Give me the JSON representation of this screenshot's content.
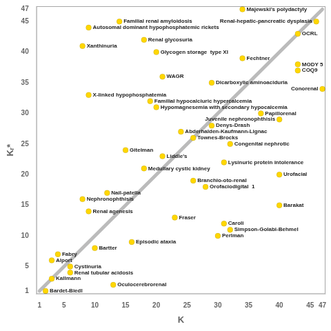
{
  "chart_data": {
    "type": "scatter",
    "xlabel": "K",
    "ylabel": "Kᵣ*",
    "color": "#FFD700",
    "points": [
      {
        "name": "Majewski's polydactyly",
        "x": 34,
        "y": 47
      },
      {
        "name": "Renal-hepatic-pancreatic dysplasia",
        "x": 46,
        "y": 45
      },
      {
        "name": "Familial renal amyloidosis",
        "x": 14,
        "y": 45
      },
      {
        "name": "Autosomal dominant hypophosphatemic rickets",
        "x": 9,
        "y": 44
      },
      {
        "name": "OCRL",
        "x": 43,
        "y": 43
      },
      {
        "name": "Renal glycosuria",
        "x": 18,
        "y": 42
      },
      {
        "name": "Xanthinuria",
        "x": 8,
        "y": 41
      },
      {
        "name": "Glycogen storage  type XI",
        "x": 20,
        "y": 40
      },
      {
        "name": "Fechtner",
        "x": 34,
        "y": 39
      },
      {
        "name": "MODY 5",
        "x": 43,
        "y": 38
      },
      {
        "name": "COQ9",
        "x": 43,
        "y": 37
      },
      {
        "name": "WAGR",
        "x": 21,
        "y": 36
      },
      {
        "name": "Dicarboxylic aminoaciduria",
        "x": 29,
        "y": 35
      },
      {
        "name": "Conorenal",
        "x": 47,
        "y": 34
      },
      {
        "name": "X-linked hypophosphatemia",
        "x": 9,
        "y": 33
      },
      {
        "name": "Familial hypocalciuric hypercalcemia",
        "x": 19,
        "y": 32
      },
      {
        "name": "Hypomagnesemia with secondary hypocalcemia",
        "x": 20,
        "y": 31
      },
      {
        "name": "Papillorenal",
        "x": 37,
        "y": 30
      },
      {
        "name": "Juvenile nephronophthisis",
        "x": 40,
        "y": 29
      },
      {
        "name": "Denys-Drash",
        "x": 29,
        "y": 28
      },
      {
        "name": "Abderhalden-Kaufmann-Lignac",
        "x": 24,
        "y": 27
      },
      {
        "name": "Townes-Brocks",
        "x": 26,
        "y": 26
      },
      {
        "name": "Congenital nephrotic",
        "x": 32,
        "y": 25
      },
      {
        "name": "Gitelman",
        "x": 15,
        "y": 24
      },
      {
        "name": "Liddle's",
        "x": 21,
        "y": 23
      },
      {
        "name": "Lysinuric protein intolerance",
        "x": 31,
        "y": 22
      },
      {
        "name": "Medullary cystic kidney",
        "x": 18,
        "y": 21
      },
      {
        "name": "Urofacial",
        "x": 40,
        "y": 20
      },
      {
        "name": "Branchio-oto-renal",
        "x": 26,
        "y": 19
      },
      {
        "name": "Orofaciodigital  1",
        "x": 28,
        "y": 18
      },
      {
        "name": "Nail-patella",
        "x": 12,
        "y": 17
      },
      {
        "name": "Nephronophthisis",
        "x": 8,
        "y": 16
      },
      {
        "name": "Barakat",
        "x": 40,
        "y": 15
      },
      {
        "name": "Renal agenesis",
        "x": 9,
        "y": 14
      },
      {
        "name": "Fraser",
        "x": 23,
        "y": 13
      },
      {
        "name": "Caroli",
        "x": 31,
        "y": 12
      },
      {
        "name": "Simpson-Golabi-Behmel",
        "x": 32,
        "y": 11
      },
      {
        "name": "Perlman",
        "x": 30,
        "y": 10
      },
      {
        "name": "Episodic ataxia",
        "x": 16,
        "y": 9
      },
      {
        "name": "Bartter",
        "x": 10,
        "y": 8
      },
      {
        "name": "Fabry",
        "x": 4,
        "y": 7
      },
      {
        "name": "Alport",
        "x": 3,
        "y": 6
      },
      {
        "name": "Cystinuria",
        "x": 6,
        "y": 5
      },
      {
        "name": "Renal tubular acidosis",
        "x": 6,
        "y": 4
      },
      {
        "name": "Kallmann",
        "x": 3,
        "y": 3
      },
      {
        "name": "Oculocerebrorenal",
        "x": 13,
        "y": 2
      },
      {
        "name": "Bardet-Biedl",
        "x": 2,
        "y": 1
      }
    ],
    "reference_line": {
      "x": [
        1,
        47
      ],
      "y": [
        1,
        47
      ],
      "color": "#BBBBBB"
    },
    "xlim": [
      0.5,
      47.5
    ],
    "ylim": [
      0.5,
      47.5
    ],
    "xticks": [
      1,
      5,
      10,
      15,
      20,
      25,
      30,
      35,
      40,
      45,
      47
    ],
    "yticks": [
      1,
      5,
      10,
      15,
      20,
      25,
      30,
      35,
      40,
      45,
      47
    ],
    "grid": false
  }
}
